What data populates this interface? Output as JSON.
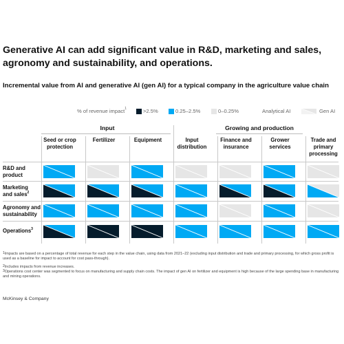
{
  "headline": "Generative AI can add significant value in R&D, marketing and sales, agronomy and sustainability, and operations.",
  "chart_data": {
    "type": "heatmap",
    "title": "Incremental value from AI and generative AI (gen AI) for a typical company in the agriculture value chain",
    "legend": {
      "label": "% of revenue impact",
      "label_sup": "1",
      "levels": [
        {
          "key": "high",
          "label": ">2.5%",
          "color": "#051c2c"
        },
        {
          "key": "mid",
          "label": "0.25–2.5%",
          "color": "#00a9f4"
        },
        {
          "key": "low",
          "label": "0–0.25%",
          "color": "#e6e6e6"
        }
      ],
      "types": [
        {
          "key": "ai",
          "label": "Analytical AI"
        },
        {
          "key": "gen",
          "label": "Gen AI"
        }
      ],
      "placement": "top"
    },
    "groups": [
      {
        "label": "Input",
        "columns": [
          0,
          1,
          2
        ]
      },
      {
        "label": "Growing and production",
        "columns": [
          4,
          5
        ]
      }
    ],
    "columns": [
      {
        "label": "Seed or crop protection",
        "lines": [
          "Seed or crop",
          "protection"
        ]
      },
      {
        "label": "Fertilizer",
        "lines": [
          "Fertilizer"
        ]
      },
      {
        "label": "Equipment",
        "lines": [
          "Equipment"
        ]
      },
      {
        "label": "Input distribution",
        "lines": [
          "Input",
          "distribution"
        ]
      },
      {
        "label": "Finance and insurance",
        "lines": [
          "Finance and",
          "insurance"
        ]
      },
      {
        "label": "Grower services",
        "lines": [
          "Grower",
          "services"
        ]
      },
      {
        "label": "Trade and primary processing",
        "lines": [
          "Trade and",
          "primary",
          "processing"
        ]
      }
    ],
    "rows": [
      {
        "label": "R&D and product",
        "lines": [
          "R&D and",
          "product"
        ],
        "sup": "",
        "analytical_ai": [
          "mid",
          "low",
          "mid",
          "low",
          "low",
          "mid",
          "low"
        ],
        "gen_ai": [
          "mid",
          "low",
          "mid",
          "low",
          "low",
          "mid",
          "low"
        ]
      },
      {
        "label": "Marketing and sales",
        "lines": [
          "Marketing",
          "and sales"
        ],
        "sup": "2",
        "analytical_ai": [
          "high",
          "high",
          "high",
          "mid",
          "high",
          "high",
          "mid"
        ],
        "gen_ai": [
          "mid",
          "mid",
          "mid",
          "mid",
          "mid",
          "mid",
          "low"
        ]
      },
      {
        "label": "Agronomy and sustainability",
        "lines": [
          "Agronomy and",
          "sustainability"
        ],
        "sup": "",
        "analytical_ai": [
          "mid",
          "mid",
          "mid",
          "mid",
          "low",
          "mid",
          "low"
        ],
        "gen_ai": [
          "mid",
          "mid",
          "mid",
          "mid",
          "low",
          "mid",
          "low"
        ]
      },
      {
        "label": "Operations",
        "lines": [
          "Operations"
        ],
        "sup": "3",
        "analytical_ai": [
          "high",
          "high",
          "high",
          "mid",
          "mid",
          "mid",
          "mid"
        ],
        "gen_ai": [
          "mid",
          "high",
          "high",
          "mid",
          "mid",
          "mid",
          "mid"
        ]
      }
    ]
  },
  "footnotes": [
    {
      "sup": "1",
      "text": "Impacts are based on a percentage of total revenue for each step in the value chain, using data from 2021–22 (excluding input distribution and trade and primary processing, for which gross profit is used as a baseline for impact to account for cost pass-through)."
    },
    {
      "sup": "2",
      "text": "Includes impacts from revenue increases."
    },
    {
      "sup": "3",
      "text": "Operations cost center was segmented to focus on manufacturing and supply chain costs. The impact of gen AI on fertilizer and equipment is high because of the large spending base in manufacturing and mining operations."
    }
  ],
  "source": "McKinsey & Company"
}
